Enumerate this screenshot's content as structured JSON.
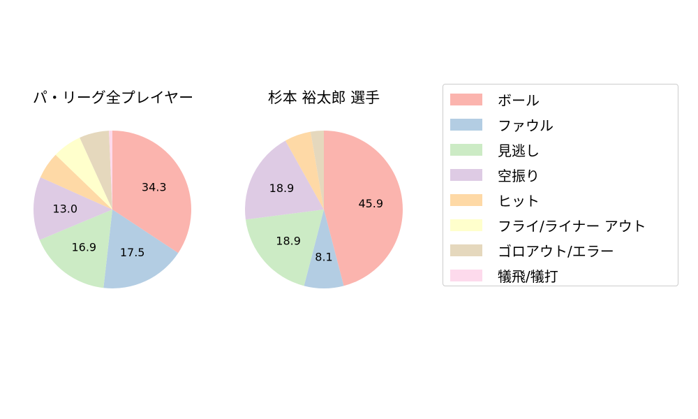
{
  "colors": {
    "ボール": "#fbb4ae",
    "ファウル": "#b3cde3",
    "見逃し": "#ccebc5",
    "空振り": "#decbe4",
    "ヒット": "#fed9a6",
    "フライ/ライナー アウト": "#ffffcc",
    "ゴロアウト/エラー": "#e5d8bd",
    "犠飛/犠打": "#fddaec"
  },
  "legend": {
    "items": [
      "ボール",
      "ファウル",
      "見逃し",
      "空振り",
      "ヒット",
      "フライ/ライナー アウト",
      "ゴロアウト/エラー",
      "犠飛/犠打"
    ]
  },
  "chart_data": [
    {
      "type": "pie",
      "title": "パ・リーグ全プレイヤー",
      "categories": [
        "ボール",
        "ファウル",
        "見逃し",
        "空振り",
        "ヒット",
        "フライ/ライナー アウト",
        "ゴロアウト/エラー",
        "犠飛/犠打"
      ],
      "values": [
        34.3,
        17.5,
        16.9,
        13.0,
        5.5,
        6.0,
        6.1,
        0.7
      ],
      "labels": [
        "34.3",
        "17.5",
        "16.9",
        "13.0",
        "",
        "",
        "",
        ""
      ],
      "start_angle": 90,
      "direction": "clockwise"
    },
    {
      "type": "pie",
      "title": "杉本 裕太郎  選手",
      "categories": [
        "ボール",
        "ファウル",
        "見逃し",
        "空振り",
        "ヒット",
        "フライ/ライナー アウト",
        "ゴロアウト/エラー",
        "犠飛/犠打"
      ],
      "values": [
        45.9,
        8.1,
        18.9,
        18.9,
        5.4,
        0,
        2.7,
        0
      ],
      "labels": [
        "45.9",
        "8.1",
        "18.9",
        "18.9",
        "",
        "",
        "",
        ""
      ],
      "start_angle": 90,
      "direction": "clockwise"
    }
  ]
}
